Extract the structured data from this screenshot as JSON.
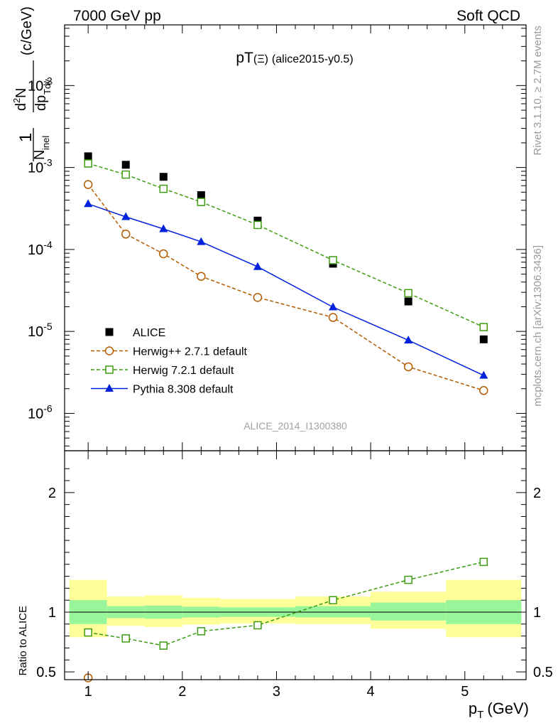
{
  "header": {
    "left": "7000 GeV pp",
    "right": "Soft QCD"
  },
  "side": {
    "top": "Rivet 3.1.10, ≥ 2.7M events",
    "bottom": "mcplots.cern.ch [arXiv:1306.3436]"
  },
  "watermark": "ALICE_2014_I1300380",
  "chart_data": [
    {
      "type": "scatter",
      "title_main": "pT",
      "title_sym": "(Ξ)",
      "title_rest": "(alice2015-y0.5)",
      "ylabel_unit": "(c/GeV)",
      "y_scale": "log",
      "xlim": [
        0.75,
        5.65
      ],
      "ylim": [
        3.5e-07,
        0.055
      ],
      "ytick_exponents": [
        "-2",
        "-3",
        "-4",
        "-5",
        "-6"
      ],
      "legend_position": "lower-left",
      "series": [
        {
          "name": "ALICE",
          "color": "#000000",
          "marker": "square-filled",
          "line": "none",
          "x": [
            1.0,
            1.4,
            1.8,
            2.2,
            2.8,
            3.6,
            4.4,
            5.2
          ],
          "y": [
            0.00137,
            0.00108,
            0.00077,
            0.00046,
            0.000225,
            6.7e-05,
            2.32e-05,
            8e-06
          ]
        },
        {
          "name": "Herwig++ 2.7.1 default",
          "color": "#b35a00",
          "marker": "circle-open",
          "line": "dashed",
          "x": [
            1.0,
            1.4,
            1.8,
            2.2,
            2.8,
            3.6,
            4.4,
            5.2
          ],
          "y": [
            0.00062,
            0.000154,
            8.85e-05,
            4.7e-05,
            2.6e-05,
            1.48e-05,
            3.7e-06,
            1.9e-06
          ]
        },
        {
          "name": "Herwig 7.2.1 default",
          "color": "#3e9b10",
          "marker": "square-open",
          "line": "dashed",
          "x": [
            1.0,
            1.4,
            1.8,
            2.2,
            2.8,
            3.6,
            4.4,
            5.2
          ],
          "y": [
            0.00112,
            0.00082,
            0.00055,
            0.00038,
            0.000199,
            7.4e-05,
            2.93e-05,
            1.13e-05
          ]
        },
        {
          "name": "Pythia 8.308 default",
          "color": "#0022dd",
          "marker": "triangle-filled",
          "line": "solid",
          "x": [
            1.0,
            1.4,
            1.8,
            2.2,
            2.8,
            3.6,
            4.4,
            5.2
          ],
          "y": [
            0.00036,
            0.00025,
            0.000178,
            0.000124,
            6.15e-05,
            1.98e-05,
            7.8e-06,
            2.9e-06
          ]
        }
      ]
    },
    {
      "type": "scatter",
      "ylabel": "Ratio to ALICE",
      "xlabel_main": "p",
      "xlabel_sub": "T",
      "xlabel_unit": "(GeV)",
      "xlim": [
        0.75,
        5.65
      ],
      "ylim": [
        0.435,
        2.35
      ],
      "xticks": [
        "1",
        "2",
        "3",
        "4",
        "5"
      ],
      "yticks": [
        "2",
        "1",
        "0.5"
      ],
      "bands": {
        "edges": [
          0.8,
          1.2,
          1.6,
          2.0,
          2.4,
          3.2,
          4.0,
          4.8,
          5.6
        ],
        "inner": [
          [
            0.9,
            1.1
          ],
          [
            0.95,
            1.05
          ],
          [
            0.945,
            1.055
          ],
          [
            0.955,
            1.045
          ],
          [
            0.96,
            1.04
          ],
          [
            0.955,
            1.05
          ],
          [
            0.93,
            1.08
          ],
          [
            0.9,
            1.1
          ]
        ],
        "outer": [
          [
            0.79,
            1.27
          ],
          [
            0.885,
            1.13
          ],
          [
            0.875,
            1.14
          ],
          [
            0.895,
            1.12
          ],
          [
            0.905,
            1.11
          ],
          [
            0.9,
            1.13
          ],
          [
            0.86,
            1.17
          ],
          [
            0.79,
            1.27
          ]
        ]
      },
      "series": [
        {
          "name": "Herwig++ 2.7.1 default",
          "color": "#b35a00",
          "marker": "circle-open",
          "line": "dashed",
          "x": [
            1.0
          ],
          "y": [
            0.45
          ]
        },
        {
          "name": "Herwig 7.2.1 default",
          "color": "#3e9b10",
          "marker": "square-open",
          "line": "dashed",
          "x": [
            1.0,
            1.4,
            1.8,
            2.2,
            2.8,
            3.6,
            4.4,
            5.2
          ],
          "y": [
            0.83,
            0.78,
            0.72,
            0.84,
            0.89,
            1.1,
            1.27,
            1.42
          ]
        }
      ]
    }
  ]
}
